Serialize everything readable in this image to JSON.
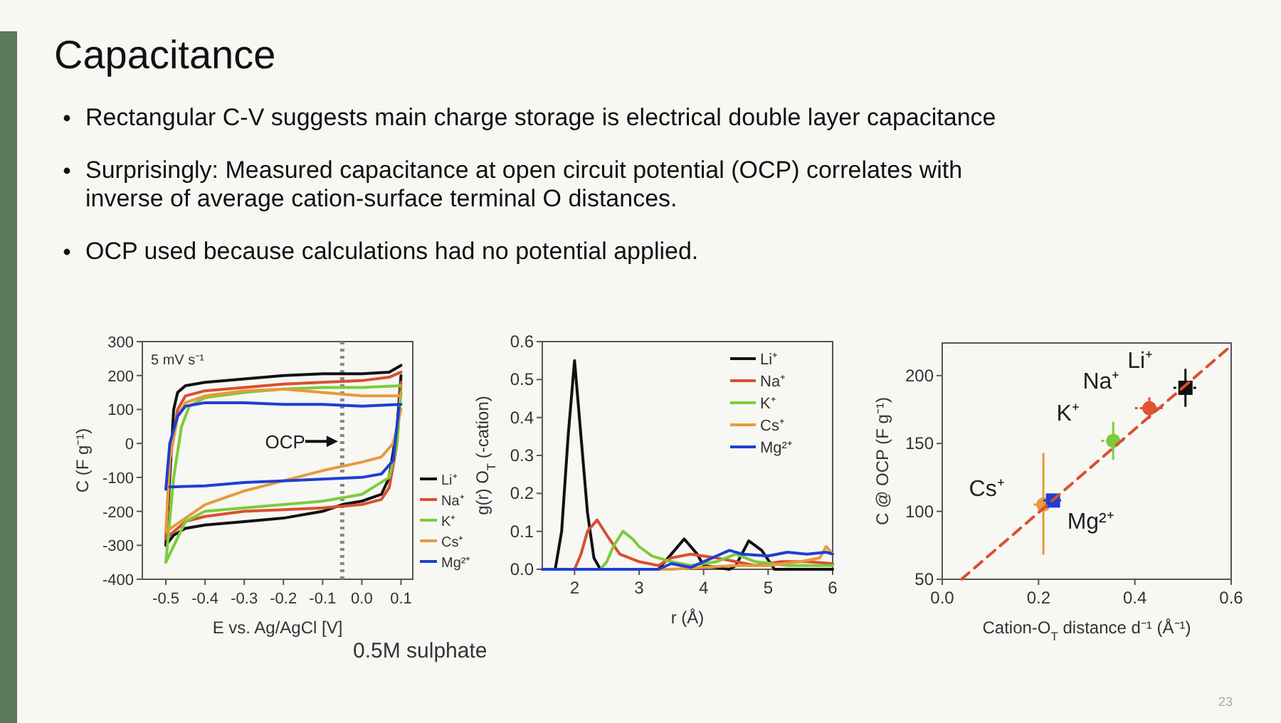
{
  "chart_data": [
    {
      "type": "other",
      "title": "Capacitance",
      "annotations": [
        "Rectangular C-V suggests main charge storage is electrical double layer capacitance",
        "Surprisingly: Measured capacitance at open circuit potential (OCP) correlates with inverse of average cation-surface terminal O distances.",
        "OCP used because calculations had no potential applied.",
        "23"
      ]
    },
    {
      "type": "line",
      "xlabel": "E vs. Ag/AgCl [V]",
      "ylabel": "C (F g⁻¹)",
      "xlim": [
        -0.56,
        0.13
      ],
      "ylim": [
        -400,
        300
      ],
      "xticks": [
        -0.5,
        -0.4,
        -0.3,
        -0.2,
        -0.1,
        {
          "value": 0,
          "label": "0.0"
        },
        0.1
      ],
      "yticks": [
        -400,
        -300,
        -200,
        -100,
        0,
        100,
        200,
        300
      ],
      "legend": "bottom right",
      "marker": "none",
      "line_style": "solid",
      "annotations": [
        "5 mV s⁻¹",
        "0.5M sulphate"
      ],
      "ref_lines": [
        {
          "axis": "x",
          "value": -0.05,
          "label": "OCP",
          "line_style": "dotted",
          "color": "#888888"
        }
      ],
      "series": [
        {
          "name": "Li⁺",
          "color": "#111111",
          "x": [
            -0.5,
            -0.49,
            -0.48,
            -0.47,
            -0.45,
            -0.4,
            -0.3,
            -0.2,
            -0.1,
            0,
            0.07,
            0.1
          ],
          "values": [
            -300,
            -100,
            100,
            150,
            170,
            180,
            190,
            200,
            205,
            205,
            210,
            230
          ]
        },
        {
          "color": "#111111",
          "x": [
            -0.5,
            -0.48,
            -0.45,
            -0.4,
            -0.3,
            -0.2,
            -0.1,
            -0.05,
            0,
            0.05,
            0.07,
            0.09,
            0.1
          ],
          "values": [
            -300,
            -270,
            -250,
            -240,
            -230,
            -220,
            -200,
            -180,
            -170,
            -150,
            -100,
            50,
            200
          ]
        },
        {
          "name": "Na⁺",
          "color": "#d9502f",
          "x": [
            -0.5,
            -0.49,
            -0.47,
            -0.45,
            -0.4,
            -0.3,
            -0.2,
            -0.1,
            0,
            0.07,
            0.1
          ],
          "values": [
            -280,
            -50,
            100,
            140,
            155,
            165,
            175,
            180,
            185,
            195,
            210
          ]
        },
        {
          "color": "#d9502f",
          "x": [
            -0.5,
            -0.45,
            -0.4,
            -0.3,
            -0.2,
            -0.1,
            0,
            0.05,
            0.07,
            0.09,
            0.1
          ],
          "values": [
            -280,
            -230,
            -215,
            -200,
            -195,
            -190,
            -180,
            -165,
            -130,
            0,
            180
          ]
        },
        {
          "name": "K⁺",
          "color": "#7ccc3a",
          "x": [
            -0.5,
            -0.48,
            -0.46,
            -0.44,
            -0.4,
            -0.3,
            -0.2,
            -0.1,
            0,
            0.1
          ],
          "values": [
            -350,
            -100,
            50,
            110,
            135,
            150,
            160,
            165,
            165,
            170
          ]
        },
        {
          "color": "#7ccc3a",
          "x": [
            -0.5,
            -0.45,
            -0.4,
            -0.3,
            -0.2,
            -0.1,
            0,
            0.07,
            0.09,
            0.1
          ],
          "values": [
            -350,
            -230,
            -200,
            -190,
            -180,
            -170,
            -150,
            -100,
            0,
            150
          ]
        },
        {
          "name": "Cs⁺",
          "color": "#e89a3c",
          "x": [
            -0.5,
            -0.49,
            -0.47,
            -0.45,
            -0.4,
            -0.3,
            -0.2,
            -0.1,
            0,
            0.1
          ],
          "values": [
            -260,
            -50,
            80,
            120,
            140,
            155,
            160,
            150,
            140,
            140
          ]
        },
        {
          "color": "#e89a3c",
          "x": [
            -0.5,
            -0.45,
            -0.4,
            -0.3,
            -0.2,
            -0.1,
            0,
            0.05,
            0.08,
            0.1
          ],
          "values": [
            -260,
            -220,
            -180,
            -140,
            -110,
            -80,
            -55,
            -40,
            0,
            100
          ]
        },
        {
          "name": "Mg²⁺",
          "color": "#1f3fd0",
          "x": [
            -0.5,
            -0.49,
            -0.47,
            -0.45,
            -0.4,
            -0.3,
            -0.2,
            -0.1,
            0,
            0.1
          ],
          "values": [
            -135,
            0,
            80,
            110,
            120,
            120,
            115,
            115,
            110,
            115
          ]
        },
        {
          "color": "#1f3fd0",
          "x": [
            -0.49,
            -0.4,
            -0.3,
            -0.2,
            -0.1,
            0,
            0.05,
            0.08,
            0.095
          ],
          "values": [
            -128,
            -125,
            -115,
            -110,
            -105,
            -100,
            -90,
            -50,
            105
          ]
        }
      ]
    },
    {
      "type": "line",
      "xlabel": "r (Å)",
      "ylabel": "g(r) O$_{T}$ (-cation)",
      "xlim": [
        1.5,
        6
      ],
      "ylim": [
        0,
        0.6
      ],
      "xticks": [
        2,
        3,
        4,
        5,
        6
      ],
      "yticks": [
        {
          "value": 0,
          "label": "0.0"
        },
        0.1,
        0.2,
        0.3,
        0.4,
        0.5,
        0.6
      ],
      "legend": "top right",
      "marker": "none",
      "line_style": "solid",
      "series": [
        {
          "name": "Li⁺",
          "color": "#111111",
          "x": [
            1.5,
            1.7,
            1.8,
            1.9,
            2.0,
            2.1,
            2.2,
            2.3,
            2.4,
            3.3,
            3.5,
            3.7,
            3.9,
            4.0,
            4.4,
            4.5,
            4.7,
            4.9,
            5.1,
            6
          ],
          "values": [
            0,
            0,
            0.1,
            0.35,
            0.55,
            0.35,
            0.15,
            0.03,
            0,
            0,
            0.04,
            0.08,
            0.04,
            0.01,
            0,
            0.01,
            0.075,
            0.05,
            0,
            0
          ]
        },
        {
          "name": "Na⁺",
          "color": "#d9502f",
          "x": [
            1.5,
            2.0,
            2.1,
            2.2,
            2.35,
            2.5,
            2.7,
            3.0,
            3.3,
            3.5,
            3.8,
            4.2,
            4.5,
            4.8,
            5.2,
            5.6,
            6
          ],
          "values": [
            0,
            0,
            0.04,
            0.1,
            0.13,
            0.09,
            0.04,
            0.02,
            0.01,
            0.03,
            0.04,
            0.03,
            0.02,
            0.01,
            0.02,
            0.02,
            0.015
          ]
        },
        {
          "name": "K⁺",
          "color": "#7ccc3a",
          "x": [
            1.5,
            2.4,
            2.5,
            2.6,
            2.75,
            2.9,
            3.0,
            3.2,
            3.5,
            3.8,
            4.2,
            4.5,
            4.8,
            5.3,
            6
          ],
          "values": [
            0,
            0,
            0.02,
            0.06,
            0.1,
            0.08,
            0.06,
            0.035,
            0.02,
            0.01,
            0.02,
            0.04,
            0.02,
            0.01,
            0.01
          ]
        },
        {
          "name": "Cs⁺",
          "color": "#e89a3c",
          "x": [
            1.5,
            3.5,
            4.0,
            4.5,
            5.0,
            5.5,
            5.8,
            5.9,
            6
          ],
          "values": [
            0,
            0,
            0.005,
            0.01,
            0.01,
            0.02,
            0.03,
            0.06,
            0.04
          ]
        },
        {
          "name": "Mg²⁺",
          "color": "#1f3fd0",
          "x": [
            1.5,
            3.3,
            3.5,
            3.8,
            4.0,
            4.4,
            4.6,
            5.0,
            5.3,
            5.6,
            5.9,
            6
          ],
          "values": [
            0,
            0,
            0.015,
            0.005,
            0.02,
            0.05,
            0.04,
            0.035,
            0.045,
            0.04,
            0.045,
            0.04
          ]
        }
      ]
    },
    {
      "type": "scatter",
      "xlabel": "Cation-O$_{T}$ distance d⁻¹ (Å⁻¹)",
      "ylabel": "C @ OCP (F g⁻¹)",
      "xlim": [
        0,
        0.6
      ],
      "ylim": [
        50,
        224
      ],
      "xticks": [
        {
          "value": 0,
          "label": "0.0"
        },
        0.2,
        0.4,
        0.6
      ],
      "yticks": [
        50,
        100,
        150,
        200
      ],
      "legend": false,
      "series": [
        {
          "name": "Cs⁺",
          "color": "#e89a3c",
          "marker": "circle",
          "x": [
            0.21
          ],
          "values": [
            105
          ],
          "errors": [
            [
              68,
              143
            ]
          ],
          "xerrors": [
            [
              0.19,
              0.23
            ]
          ]
        },
        {
          "name": "Mg²⁺",
          "color": "#1f3fd0",
          "marker": "square",
          "x": [
            0.23
          ],
          "values": [
            108
          ],
          "errors": [
            3
          ],
          "xerrors": [
            [
              0.21,
              0.25
            ]
          ]
        },
        {
          "name": "K⁺",
          "color": "#7ccc3a",
          "marker": "circle",
          "x": [
            0.355
          ],
          "values": [
            152
          ],
          "errors": [
            [
              138,
              166
            ]
          ],
          "xerrors": [
            [
              0.33,
              0.38
            ]
          ]
        },
        {
          "name": "Na⁺",
          "color": "#e0552f",
          "marker": "circle",
          "x": [
            0.43
          ],
          "values": [
            176
          ],
          "errors": [
            [
              168,
              184
            ]
          ],
          "xerrors": [
            [
              0.4,
              0.46
            ]
          ]
        },
        {
          "name": "Li⁺",
          "color": "#111111",
          "marker": "square",
          "x": [
            0.505
          ],
          "values": [
            191
          ],
          "errors": [
            [
              177,
              205
            ]
          ],
          "xerrors": [
            [
              0.48,
              0.53
            ]
          ]
        },
        {
          "type": "line",
          "color": "#d9502f",
          "line_style": "dashed",
          "x": [
            0.04,
            0.6
          ],
          "values": [
            50,
            222
          ]
        }
      ]
    }
  ]
}
